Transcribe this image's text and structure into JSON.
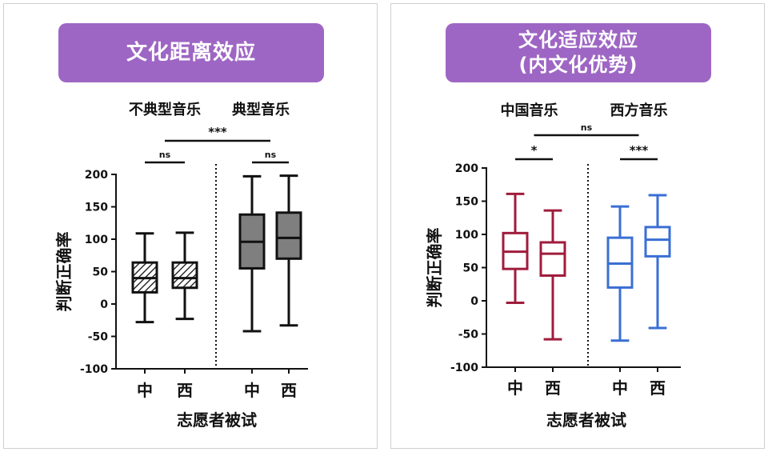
{
  "left": {
    "banner": "文化距离效应",
    "group_labels": [
      "不典型音乐",
      "典型音乐"
    ],
    "ylabel": "判断正确率",
    "xlabel": "志愿者被试",
    "sig": {
      "within_g1": "ns",
      "within_g2": "ns",
      "between": "***"
    }
  },
  "right": {
    "banner_line1": "文化适应效应",
    "banner_line2": "(内文化优势)",
    "group_labels": [
      "中国音乐",
      "西方音乐"
    ],
    "ylabel": "判断正确率",
    "xlabel": "志愿者被试",
    "sig": {
      "within_g1": "*",
      "within_g2": "***",
      "between": "ns"
    }
  },
  "colors": {
    "banner": "#9e66c4",
    "black": "#111111",
    "hatch_fill": "#ffffff",
    "solid_fill": "#7f7f7f",
    "red": "#a01c3c",
    "blue": "#3a6fd4"
  },
  "chart_data": [
    {
      "type": "box",
      "panel": "left",
      "categories": [
        "中",
        "西",
        "中",
        "西"
      ],
      "groups": [
        "不典型音乐",
        "典型音乐"
      ],
      "ylabel": "判断正确率",
      "xlabel": "志愿者被试",
      "ylim": [
        -100,
        200
      ],
      "yticks": [
        -100,
        -50,
        0,
        50,
        100,
        150,
        200
      ],
      "boxes": [
        {
          "group": "不典型音乐",
          "category": "中",
          "min": -28,
          "q1": 18,
          "median": 40,
          "q3": 64,
          "max": 109,
          "style": "hatched"
        },
        {
          "group": "不典型音乐",
          "category": "西",
          "min": -23,
          "q1": 25,
          "median": 40,
          "q3": 64,
          "max": 110,
          "style": "hatched"
        },
        {
          "group": "典型音乐",
          "category": "中",
          "min": -42,
          "q1": 55,
          "median": 96,
          "q3": 138,
          "max": 197,
          "style": "solid"
        },
        {
          "group": "典型音乐",
          "category": "西",
          "min": -33,
          "q1": 70,
          "median": 102,
          "q3": 141,
          "max": 198,
          "style": "solid"
        }
      ]
    },
    {
      "type": "box",
      "panel": "right",
      "categories": [
        "中",
        "西",
        "中",
        "西"
      ],
      "groups": [
        "中国音乐",
        "西方音乐"
      ],
      "ylabel": "判断正确率",
      "xlabel": "志愿者被试",
      "ylim": [
        -100,
        200
      ],
      "yticks": [
        -100,
        -50,
        0,
        50,
        100,
        150,
        200
      ],
      "boxes": [
        {
          "group": "中国音乐",
          "category": "中",
          "min": -3,
          "q1": 48,
          "median": 74,
          "q3": 102,
          "max": 161,
          "color": "red"
        },
        {
          "group": "中国音乐",
          "category": "西",
          "min": -58,
          "q1": 38,
          "median": 71,
          "q3": 88,
          "max": 136,
          "color": "red"
        },
        {
          "group": "西方音乐",
          "category": "中",
          "min": -60,
          "q1": 20,
          "median": 56,
          "q3": 95,
          "max": 142,
          "color": "blue"
        },
        {
          "group": "西方音乐",
          "category": "西",
          "min": -41,
          "q1": 67,
          "median": 92,
          "q3": 111,
          "max": 159,
          "color": "blue"
        }
      ]
    }
  ]
}
